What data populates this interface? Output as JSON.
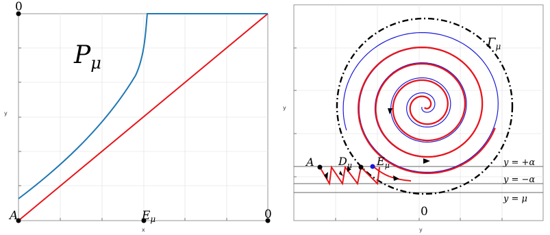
{
  "left_panel": {
    "xlabel": "x",
    "ylabel": "y",
    "curve_label_main": "P",
    "curve_label_sub": "μ",
    "point_A": "A",
    "point_E_main": "E",
    "point_E_sub": "μ",
    "zero_top": "0",
    "zero_right": "0",
    "colors": {
      "upper_curve": "#1f77b4",
      "diagonal": "#e8141b"
    }
  },
  "right_panel": {
    "xlabel": "y",
    "ylabel": "y",
    "gamma_main": "Γ",
    "gamma_sub": "μ",
    "point_A": "A",
    "point_D_main": "D",
    "point_D_sub": "μ",
    "point_E_main": "E",
    "point_E_sub": "μ",
    "line_plus_alpha": "y = +α",
    "line_minus_alpha": "y = −α",
    "line_mu": "y = μ",
    "zero_label": "0",
    "colors": {
      "spiral_red": "#e8141b",
      "spiral_blue": "#1818d8",
      "circle": "#000000"
    }
  }
}
